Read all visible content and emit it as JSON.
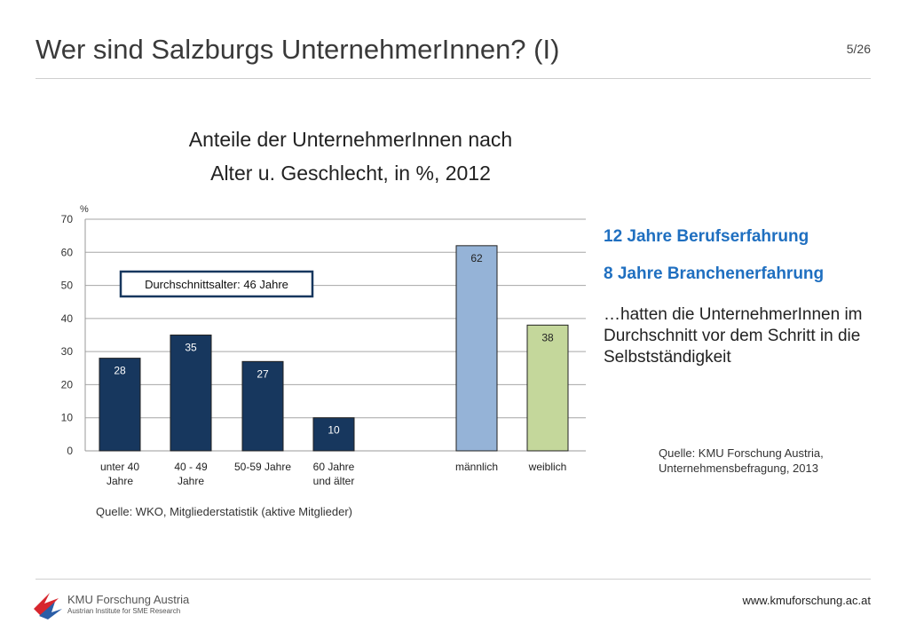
{
  "slide": {
    "title": "Wer sind Salzburgs UnternehmerInnen? (I)",
    "page": "5/26"
  },
  "chart_data": {
    "type": "bar",
    "title_line1": "Anteile der UnternehmerInnen nach",
    "title_line2": "Alter u. Geschlecht, in %, 2012",
    "ylabel": "%",
    "ylim": [
      0,
      70
    ],
    "yticks": [
      "0",
      "10",
      "20",
      "30",
      "40",
      "50",
      "60",
      "70"
    ],
    "grid": true,
    "categories": [
      [
        "unter 40",
        "Jahre"
      ],
      [
        "40 - 49",
        "Jahre"
      ],
      [
        "50-59 Jahre"
      ],
      [
        "60 Jahre",
        "und älter"
      ],
      [
        "männlich"
      ],
      [
        "weiblich"
      ]
    ],
    "values": [
      28,
      35,
      27,
      10,
      62,
      38
    ],
    "value_labels": [
      "28",
      "35",
      "27",
      "10",
      "62",
      "38"
    ],
    "bar_colors": [
      "#17375e",
      "#17375e",
      "#17375e",
      "#17375e",
      "#95b3d7",
      "#c4d79b"
    ],
    "annotation": "Durchschnittsalter:  46 Jahre"
  },
  "side": {
    "highlight1": "12 Jahre Berufserfahrung",
    "highlight2": "8 Jahre Branchenerfahrung",
    "text": "…hatten die UnternehmerInnen im Durchschnitt vor dem Schritt in die Selbstständigkeit",
    "source_line1": "Quelle: KMU Forschung Austria,",
    "source_line2": "Unternehmensbefragung, 2013"
  },
  "chart_source": "Quelle: WKO, Mitgliederstatistik (aktive Mitglieder)",
  "footer": {
    "url": "www.kmuforschung.ac.at",
    "logo_name": "KMU Forschung Austria",
    "logo_subtitle": "Austrian Institute for SME Research"
  },
  "colors": {
    "accent": "#1f6fc0",
    "logo_red": "#d7262e",
    "logo_blue": "#2b5ea7"
  }
}
